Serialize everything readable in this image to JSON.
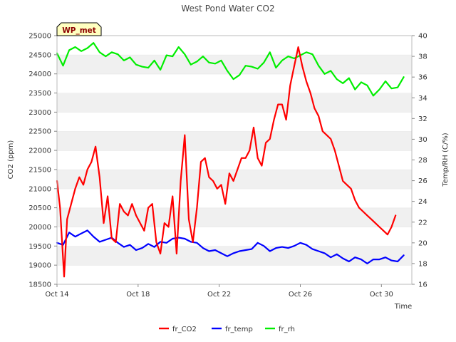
{
  "chart_data": {
    "type": "line",
    "title": "West Pond Water CO2",
    "xlabel": "Time",
    "ylabel": "CO2 (ppm)",
    "y2label": "Temp/RH (C/%)",
    "station_badge": "WP_met",
    "xlim": [
      0,
      17.5
    ],
    "ylim": [
      18500,
      25000
    ],
    "y2lim": [
      16,
      40
    ],
    "x_ticks": [
      {
        "value": 0,
        "label": "Oct 14"
      },
      {
        "value": 4,
        "label": "Oct 18"
      },
      {
        "value": 8,
        "label": "Oct 22"
      },
      {
        "value": 12,
        "label": "Oct 26"
      },
      {
        "value": 16,
        "label": "Oct 30"
      }
    ],
    "y_ticks": [
      {
        "value": 18500,
        "label": "18500"
      },
      {
        "value": 19000,
        "label": "19000"
      },
      {
        "value": 19500,
        "label": "19500"
      },
      {
        "value": 20000,
        "label": "20000"
      },
      {
        "value": 20500,
        "label": "20500"
      },
      {
        "value": 21000,
        "label": "21000"
      },
      {
        "value": 21500,
        "label": "21500"
      },
      {
        "value": 22000,
        "label": "22000"
      },
      {
        "value": 22500,
        "label": "22500"
      },
      {
        "value": 23000,
        "label": "23000"
      },
      {
        "value": 23500,
        "label": "23500"
      },
      {
        "value": 24000,
        "label": "24000"
      },
      {
        "value": 24500,
        "label": "24500"
      },
      {
        "value": 25000,
        "label": "25000"
      }
    ],
    "y2_ticks": [
      {
        "value": 16,
        "label": "16"
      },
      {
        "value": 18,
        "label": "18"
      },
      {
        "value": 20,
        "label": "20"
      },
      {
        "value": 22,
        "label": "22"
      },
      {
        "value": 24,
        "label": "24"
      },
      {
        "value": 26,
        "label": "26"
      },
      {
        "value": 28,
        "label": "28"
      },
      {
        "value": 30,
        "label": "30"
      },
      {
        "value": 32,
        "label": "32"
      },
      {
        "value": 34,
        "label": "34"
      },
      {
        "value": 36,
        "label": "36"
      },
      {
        "value": 38,
        "label": "38"
      },
      {
        "value": 40,
        "label": "40"
      }
    ],
    "grid": "horizontal-bands",
    "legend_position": "bottom",
    "series": [
      {
        "name": "fr_CO2",
        "axis": "left",
        "color": "#ff0000",
        "x": [
          0.0,
          0.15,
          0.35,
          0.5,
          0.7,
          0.9,
          1.1,
          1.3,
          1.5,
          1.7,
          1.9,
          2.1,
          2.3,
          2.5,
          2.7,
          2.9,
          3.1,
          3.3,
          3.5,
          3.7,
          3.9,
          4.1,
          4.3,
          4.5,
          4.7,
          4.9,
          5.1,
          5.3,
          5.5,
          5.7,
          5.9,
          6.1,
          6.3,
          6.5,
          6.7,
          6.9,
          7.1,
          7.3,
          7.5,
          7.7,
          7.9,
          8.1,
          8.3,
          8.5,
          8.7,
          8.9,
          9.1,
          9.3,
          9.5,
          9.7,
          9.9,
          10.1,
          10.3,
          10.5,
          10.7,
          10.9,
          11.1,
          11.3,
          11.5,
          11.7,
          11.9,
          12.1,
          12.3,
          12.5,
          12.7,
          12.9,
          13.1,
          13.3,
          13.5,
          13.7,
          13.9,
          14.1,
          14.3,
          14.5,
          14.7,
          14.9,
          15.1,
          15.3,
          15.5,
          15.7,
          15.9,
          16.1,
          16.3,
          16.5,
          16.7,
          16.9,
          17.1,
          17.3
        ],
        "values": [
          21200,
          20500,
          18700,
          20200,
          20600,
          21000,
          21300,
          21100,
          21500,
          21700,
          22100,
          21300,
          20100,
          20800,
          19700,
          19600,
          20600,
          20400,
          20300,
          20600,
          20300,
          20100,
          19900,
          20500,
          20600,
          19600,
          19300,
          20100,
          20000,
          20800,
          19300,
          21200,
          22400,
          20200,
          19600,
          20500,
          21700,
          21800,
          21300,
          21200,
          21000,
          21100,
          20600,
          21400,
          21200,
          21500,
          21800,
          21800,
          22000,
          22600,
          21800,
          21600,
          22200,
          22300,
          22800,
          23200,
          23200,
          22800,
          23700,
          24200,
          24700,
          24200,
          23800,
          23500,
          23100,
          22900,
          22500,
          22400,
          22300,
          22000,
          21600,
          21200,
          21100,
          21000,
          20700,
          20500,
          20400,
          20300,
          20200,
          20100,
          20000,
          19900,
          19800,
          20000,
          20300,
          null,
          null,
          null
        ]
      },
      {
        "name": "fr_temp",
        "axis": "right",
        "color": "#0000ff",
        "x": [
          0.0,
          0.3,
          0.6,
          0.9,
          1.2,
          1.5,
          1.8,
          2.1,
          2.4,
          2.7,
          3.0,
          3.3,
          3.6,
          3.9,
          4.2,
          4.5,
          4.8,
          5.1,
          5.4,
          5.7,
          6.0,
          6.3,
          6.6,
          6.9,
          7.2,
          7.5,
          7.8,
          8.1,
          8.4,
          8.7,
          9.0,
          9.3,
          9.6,
          9.9,
          10.2,
          10.5,
          10.8,
          11.1,
          11.4,
          11.7,
          12.0,
          12.3,
          12.6,
          12.9,
          13.2,
          13.5,
          13.8,
          14.1,
          14.4,
          14.7,
          15.0,
          15.3,
          15.6,
          15.9,
          16.2,
          16.5,
          16.8,
          17.1
        ],
        "values": [
          20.0,
          19.8,
          21.0,
          20.6,
          20.9,
          21.2,
          20.6,
          20.1,
          20.3,
          20.5,
          20.0,
          19.6,
          19.8,
          19.3,
          19.5,
          19.9,
          19.6,
          20.1,
          20.0,
          20.4,
          20.5,
          20.4,
          20.1,
          20.0,
          19.5,
          19.2,
          19.3,
          19.0,
          18.7,
          19.0,
          19.2,
          19.3,
          19.4,
          20.0,
          19.7,
          19.2,
          19.5,
          19.6,
          19.5,
          19.7,
          20.0,
          19.8,
          19.4,
          19.2,
          19.0,
          18.6,
          18.9,
          18.5,
          18.2,
          18.6,
          18.4,
          18.0,
          18.4,
          18.4,
          18.6,
          18.3,
          18.2,
          18.8
        ]
      },
      {
        "name": "fr_rh",
        "axis": "right",
        "color": "#00ee00",
        "x": [
          0.0,
          0.3,
          0.6,
          0.9,
          1.2,
          1.5,
          1.8,
          2.1,
          2.4,
          2.7,
          3.0,
          3.3,
          3.6,
          3.9,
          4.2,
          4.5,
          4.8,
          5.1,
          5.4,
          5.7,
          6.0,
          6.3,
          6.6,
          6.9,
          7.2,
          7.5,
          7.8,
          8.1,
          8.4,
          8.7,
          9.0,
          9.3,
          9.6,
          9.9,
          10.2,
          10.5,
          10.8,
          11.1,
          11.4,
          11.7,
          12.0,
          12.3,
          12.6,
          12.9,
          13.2,
          13.5,
          13.8,
          14.1,
          14.4,
          14.7,
          15.0,
          15.3,
          15.6,
          15.9,
          16.2,
          16.5,
          16.8,
          17.1
        ],
        "values": [
          38.3,
          37.1,
          38.6,
          38.9,
          38.5,
          38.8,
          39.3,
          38.4,
          38.0,
          38.4,
          38.2,
          37.6,
          37.9,
          37.2,
          37.0,
          36.9,
          37.6,
          36.7,
          38.1,
          38.0,
          38.9,
          38.2,
          37.2,
          37.5,
          38.0,
          37.4,
          37.3,
          37.6,
          36.6,
          35.8,
          36.2,
          37.1,
          37.0,
          36.8,
          37.4,
          38.4,
          36.9,
          37.6,
          38.0,
          37.8,
          38.1,
          38.4,
          38.2,
          37.1,
          36.3,
          36.6,
          35.8,
          35.4,
          35.9,
          34.8,
          35.5,
          35.2,
          34.2,
          34.8,
          35.6,
          34.9,
          35.0,
          36.0
        ]
      }
    ]
  }
}
